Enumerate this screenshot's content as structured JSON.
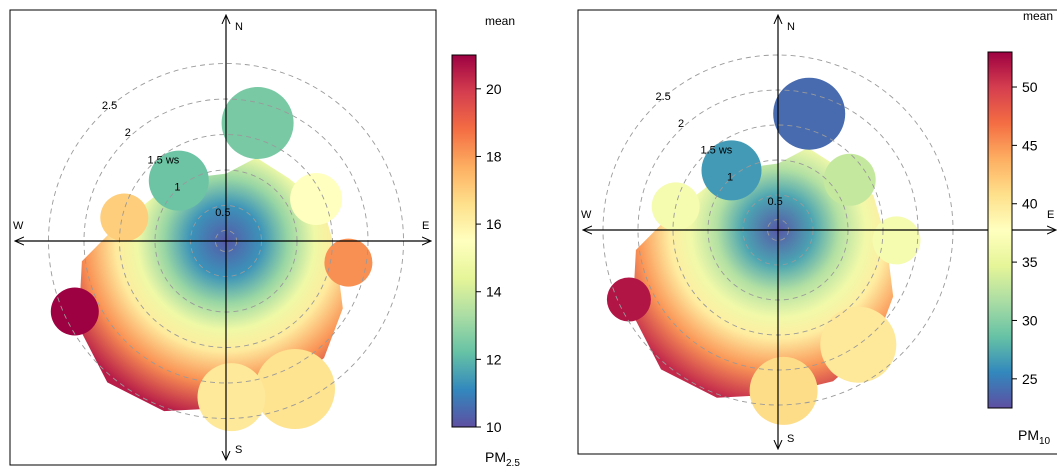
{
  "chart_data": [
    {
      "type": "polar",
      "pollutant_label": "PM",
      "pollutant_subscript": "2.5",
      "colorbar_title": "mean",
      "colorbar_ticks": [
        10,
        12,
        14,
        16,
        18,
        20
      ],
      "colorbar_range": [
        10,
        21
      ],
      "compass": [
        "N",
        "E",
        "S",
        "W"
      ],
      "radial_labels": [
        "0.5",
        "1",
        "1.5 ws",
        "2",
        "2.5"
      ],
      "ws_max": 3,
      "blobs": [
        {
          "bearing": 15,
          "ws": 1.72,
          "value": 12.5
        },
        {
          "bearing": 322,
          "ws": 1.08,
          "value": 12.3
        },
        {
          "bearing": 65,
          "ws": 1.4,
          "value": 15.5
        },
        {
          "bearing": 283,
          "ws": 1.47,
          "value": 17.0
        },
        {
          "bearing": 100,
          "ws": 1.75,
          "value": 18.2
        },
        {
          "bearing": 245,
          "ws": 2.35,
          "value": 21.0
        },
        {
          "bearing": 155,
          "ws": 2.3,
          "value": 16.5
        },
        {
          "bearing": 178,
          "ws": 2.2,
          "value": 16.3
        }
      ]
    },
    {
      "type": "polar",
      "pollutant_label": "PM",
      "pollutant_subscript": "10",
      "colorbar_title": "mean",
      "colorbar_ticks": [
        25,
        30,
        35,
        40,
        45,
        50
      ],
      "colorbar_range": [
        22.5,
        53
      ],
      "compass": [
        "N",
        "E",
        "S",
        "W"
      ],
      "radial_labels": [
        "0.5",
        "1",
        "1.5 ws",
        "2",
        "2.5"
      ],
      "ws_max": 3,
      "blobs": [
        {
          "bearing": 15,
          "ws": 1.72,
          "value": 24.0
        },
        {
          "bearing": 322,
          "ws": 1.08,
          "value": 26.5
        },
        {
          "bearing": 55,
          "ws": 1.25,
          "value": 33.0
        },
        {
          "bearing": 283,
          "ws": 1.5,
          "value": 36.5
        },
        {
          "bearing": 95,
          "ws": 1.7,
          "value": 36.5
        },
        {
          "bearing": 245,
          "ws": 2.35,
          "value": 52.0
        },
        {
          "bearing": 145,
          "ws": 2.0,
          "value": 40.0
        },
        {
          "bearing": 178,
          "ws": 2.3,
          "value": 41.0
        }
      ]
    }
  ]
}
